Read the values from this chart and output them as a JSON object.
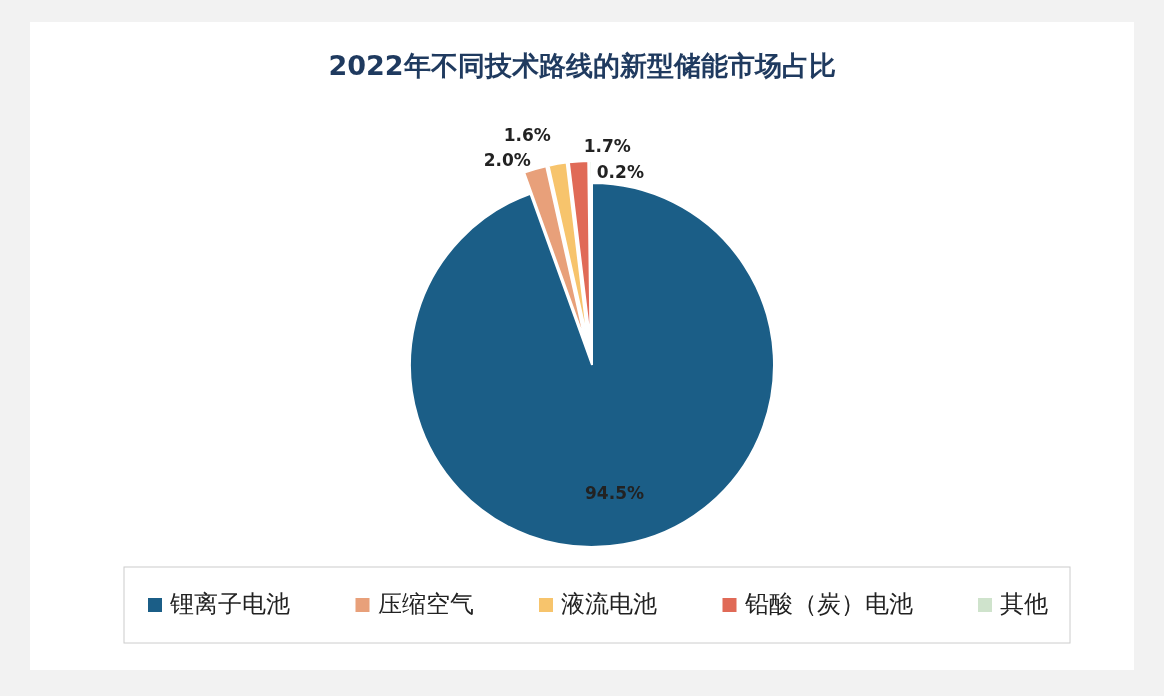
{
  "chart_data": {
    "type": "pie",
    "title": "2022年不同技术路线的新型储能市场占比",
    "categories": [
      "锂离子电池",
      "压缩空气",
      "液流电池",
      "铅酸（炭）电池",
      "其他"
    ],
    "values": [
      94.5,
      2.0,
      1.6,
      1.7,
      0.2
    ],
    "colors": [
      "#1b5e87",
      "#e8a07a",
      "#f7c46c",
      "#e06a57",
      "#cfe3cc"
    ],
    "value_labels": [
      "94.5%",
      "2.0%",
      "1.6%",
      "1.7%",
      "0.2%"
    ],
    "legend": "bottom"
  }
}
